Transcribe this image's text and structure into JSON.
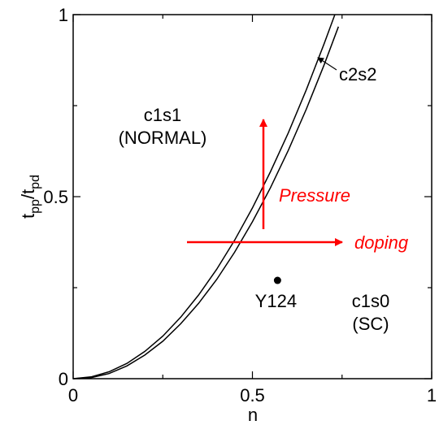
{
  "chart_data": {
    "type": "line",
    "title": "",
    "xlabel": "n",
    "ylabel_main": "t",
    "ylabel_sub1": "pp",
    "ylabel_slash": "/t",
    "ylabel_sub2": "pd",
    "xlim": [
      0,
      1
    ],
    "ylim": [
      0,
      1
    ],
    "x_ticks": [
      {
        "value": 0,
        "label": "0"
      },
      {
        "value": 0.5,
        "label": "0.5"
      },
      {
        "value": 1,
        "label": "1"
      }
    ],
    "y_ticks": [
      {
        "value": 0,
        "label": "0"
      },
      {
        "value": 0.5,
        "label": "0.5"
      },
      {
        "value": 1,
        "label": "1"
      }
    ],
    "grid": false,
    "series": [
      {
        "x": [
          0,
          0.05,
          0.1,
          0.15,
          0.2,
          0.25,
          0.3,
          0.35,
          0.4,
          0.45,
          0.5,
          0.55,
          0.6,
          0.65,
          0.7,
          0.73
        ],
        "y": [
          0,
          0.005,
          0.019,
          0.042,
          0.075,
          0.117,
          0.169,
          0.23,
          0.3,
          0.38,
          0.469,
          0.568,
          0.675,
          0.793,
          0.92,
          1.0
        ]
      },
      {
        "x": [
          0,
          0.05,
          0.1,
          0.15,
          0.2,
          0.25,
          0.3,
          0.35,
          0.4,
          0.45,
          0.5,
          0.55,
          0.6,
          0.65,
          0.7,
          0.74
        ],
        "y": [
          0,
          0.003,
          0.014,
          0.035,
          0.065,
          0.103,
          0.151,
          0.207,
          0.272,
          0.347,
          0.431,
          0.524,
          0.627,
          0.74,
          0.862,
          0.967
        ]
      }
    ],
    "points": [
      {
        "x": 0.57,
        "y": 0.27,
        "label": "Y124"
      }
    ],
    "annotations": {
      "c1s1_line1": "c1s1",
      "c1s1_line2": "(NORMAL)",
      "c2s2": "c2s2",
      "c1s0_line1": "c1s0",
      "c1s0_line2": "(SC)",
      "pressure": "Pressure",
      "doping": "doping"
    },
    "colors": {
      "curves": "#000000",
      "arrows": "#ff0000"
    }
  }
}
